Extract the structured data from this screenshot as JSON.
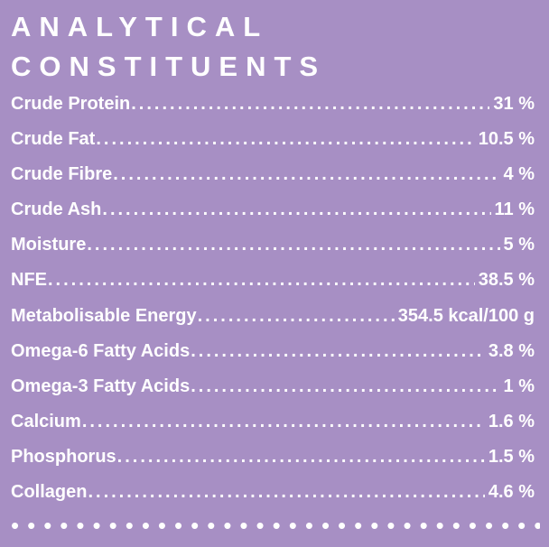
{
  "heading": {
    "line1": "ANALYTICAL",
    "line2": "CONSTITUENTS"
  },
  "constituents": [
    {
      "label": "Crude Protein",
      "value": "31 %"
    },
    {
      "label": "Crude Fat",
      "value": "10.5 %"
    },
    {
      "label": "Crude Fibre",
      "value": "4 %"
    },
    {
      "label": "Crude Ash",
      "value": "11 %"
    },
    {
      "label": "Moisture",
      "value": "5 %"
    },
    {
      "label": "NFE",
      "value": "38.5 %"
    },
    {
      "label": "Metabolisable Energy",
      "value": "354.5 kcal/100 g"
    },
    {
      "label": "Omega-6 Fatty Acids",
      "value": "3.8 %"
    },
    {
      "label": "Omega-3 Fatty Acids",
      "value": "1 %"
    },
    {
      "label": "Calcium",
      "value": "1.6 %"
    },
    {
      "label": "Phosphorus",
      "value": "1.5 %"
    },
    {
      "label": "Collagen",
      "value": "4.6 %"
    }
  ],
  "colors": {
    "background": "#a78fc4",
    "text": "#ffffff"
  }
}
